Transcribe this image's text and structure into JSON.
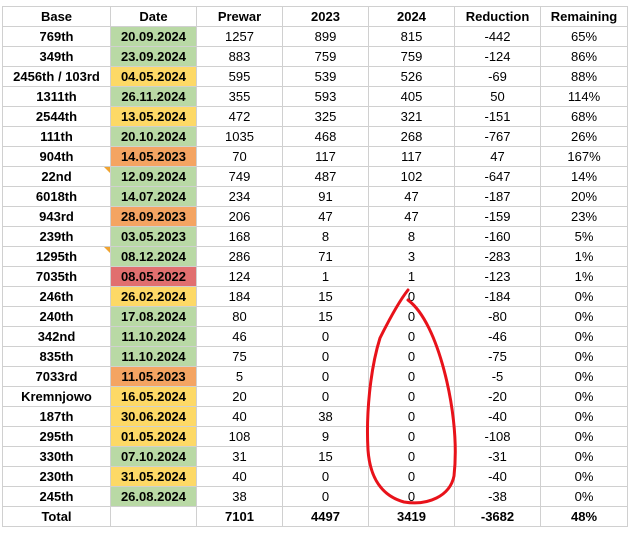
{
  "headers": [
    "Base",
    "Date",
    "Prewar",
    "2023",
    "2024",
    "Reduction",
    "Remaining"
  ],
  "rows": [
    {
      "base": "769th",
      "date": "20.09.2024",
      "date_color": "green",
      "prewar": "1257",
      "y2023": "899",
      "y2024": "815",
      "reduction": "-442",
      "remaining": "65%"
    },
    {
      "base": "349th",
      "date": "23.09.2024",
      "date_color": "green",
      "prewar": "883",
      "y2023": "759",
      "y2024": "759",
      "reduction": "-124",
      "remaining": "86%"
    },
    {
      "base": "2456th / 103rd",
      "date": "04.05.2024",
      "date_color": "yellow",
      "prewar": "595",
      "y2023": "539",
      "y2024": "526",
      "reduction": "-69",
      "remaining": "88%"
    },
    {
      "base": "1311th",
      "date": "26.11.2024",
      "date_color": "green",
      "prewar": "355",
      "y2023": "593",
      "y2024": "405",
      "reduction": "50",
      "remaining": "114%"
    },
    {
      "base": "2544th",
      "date": "13.05.2024",
      "date_color": "yellow",
      "prewar": "472",
      "y2023": "325",
      "y2024": "321",
      "reduction": "-151",
      "remaining": "68%"
    },
    {
      "base": "111th",
      "date": "20.10.2024",
      "date_color": "green",
      "prewar": "1035",
      "y2023": "468",
      "y2024": "268",
      "reduction": "-767",
      "remaining": "26%"
    },
    {
      "base": "904th",
      "date": "14.05.2023",
      "date_color": "orange",
      "prewar": "70",
      "y2023": "117",
      "y2024": "117",
      "reduction": "47",
      "remaining": "167%"
    },
    {
      "base": "22nd",
      "date": "12.09.2024",
      "date_color": "green",
      "prewar": "749",
      "y2023": "487",
      "y2024": "102",
      "reduction": "-647",
      "remaining": "14%",
      "comment_flag": true
    },
    {
      "base": "6018th",
      "date": "14.07.2024",
      "date_color": "green",
      "prewar": "234",
      "y2023": "91",
      "y2024": "47",
      "reduction": "-187",
      "remaining": "20%"
    },
    {
      "base": "943rd",
      "date": "28.09.2023",
      "date_color": "orange",
      "prewar": "206",
      "y2023": "47",
      "y2024": "47",
      "reduction": "-159",
      "remaining": "23%"
    },
    {
      "base": "239th",
      "date": "03.05.2023",
      "date_color": "green",
      "prewar": "168",
      "y2023": "8",
      "y2024": "8",
      "reduction": "-160",
      "remaining": "5%"
    },
    {
      "base": "1295th",
      "date": "08.12.2024",
      "date_color": "green",
      "prewar": "286",
      "y2023": "71",
      "y2024": "3",
      "reduction": "-283",
      "remaining": "1%",
      "comment_flag": true
    },
    {
      "base": "7035th",
      "date": "08.05.2022",
      "date_color": "red",
      "prewar": "124",
      "y2023": "1",
      "y2024": "1",
      "reduction": "-123",
      "remaining": "1%"
    },
    {
      "base": "246th",
      "date": "26.02.2024",
      "date_color": "yellow",
      "prewar": "184",
      "y2023": "15",
      "y2024": "0",
      "reduction": "-184",
      "remaining": "0%"
    },
    {
      "base": "240th",
      "date": "17.08.2024",
      "date_color": "green",
      "prewar": "80",
      "y2023": "15",
      "y2024": "0",
      "reduction": "-80",
      "remaining": "0%"
    },
    {
      "base": "342nd",
      "date": "11.10.2024",
      "date_color": "green",
      "prewar": "46",
      "y2023": "0",
      "y2024": "0",
      "reduction": "-46",
      "remaining": "0%"
    },
    {
      "base": "835th",
      "date": "11.10.2024",
      "date_color": "green",
      "prewar": "75",
      "y2023": "0",
      "y2024": "0",
      "reduction": "-75",
      "remaining": "0%"
    },
    {
      "base": "7033rd",
      "date": "11.05.2023",
      "date_color": "orange",
      "prewar": "5",
      "y2023": "0",
      "y2024": "0",
      "reduction": "-5",
      "remaining": "0%"
    },
    {
      "base": "Kremnjowo",
      "date": "16.05.2024",
      "date_color": "yellow",
      "prewar": "20",
      "y2023": "0",
      "y2024": "0",
      "reduction": "-20",
      "remaining": "0%"
    },
    {
      "base": "187th",
      "date": "30.06.2024",
      "date_color": "yellow",
      "prewar": "40",
      "y2023": "38",
      "y2024": "0",
      "reduction": "-40",
      "remaining": "0%"
    },
    {
      "base": "295th",
      "date": "01.05.2024",
      "date_color": "yellow",
      "prewar": "108",
      "y2023": "9",
      "y2024": "0",
      "reduction": "-108",
      "remaining": "0%"
    },
    {
      "base": "330th",
      "date": "07.10.2024",
      "date_color": "green",
      "prewar": "31",
      "y2023": "15",
      "y2024": "0",
      "reduction": "-31",
      "remaining": "0%"
    },
    {
      "base": "230th",
      "date": "31.05.2024",
      "date_color": "yellow",
      "prewar": "40",
      "y2023": "0",
      "y2024": "0",
      "reduction": "-40",
      "remaining": "0%"
    },
    {
      "base": "245th",
      "date": "26.08.2024",
      "date_color": "green",
      "prewar": "38",
      "y2023": "0",
      "y2024": "0",
      "reduction": "-38",
      "remaining": "0%"
    }
  ],
  "total": {
    "label": "Total",
    "prewar": "7101",
    "y2023": "4497",
    "y2024": "3419",
    "reduction": "-3682",
    "remaining": "48%"
  },
  "colors": {
    "green": "#b9d9a5",
    "yellow": "#fdd966",
    "orange": "#f4a462",
    "red": "#e16f6f",
    "ink": "#e8121a",
    "comment_flag": "#f0a431"
  }
}
